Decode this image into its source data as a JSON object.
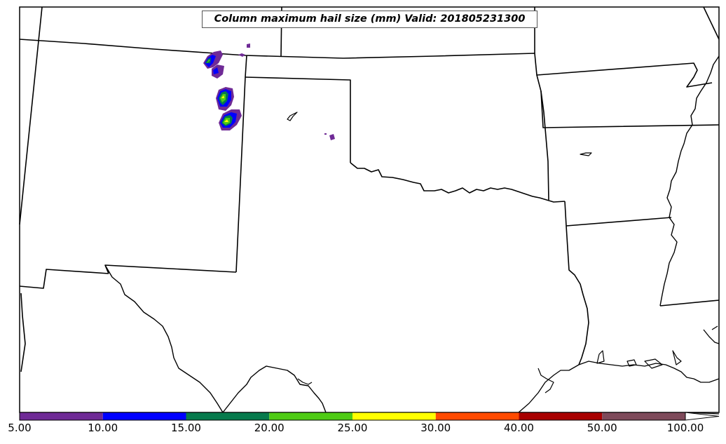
{
  "title": "Column maximum hail size (mm) Valid: 201805231300",
  "colorbar": {
    "levels": [
      {
        "label": "5.00",
        "color": "#6f2a96"
      },
      {
        "label": "10.00",
        "color": "#0000ff"
      },
      {
        "label": "15.00",
        "color": "#067a4c"
      },
      {
        "label": "20.00",
        "color": "#4ecb14"
      },
      {
        "label": "25.00",
        "color": "#ffff00"
      },
      {
        "label": "30.00",
        "color": "#ff4a00"
      },
      {
        "label": "40.00",
        "color": "#a80000"
      },
      {
        "label": "50.00",
        "color": "#7e4a5a"
      },
      {
        "label": "100.00",
        "color": "#ffffff"
      }
    ],
    "extend": "max"
  },
  "map": {
    "boundaries": "US state borders and coastline",
    "hail_colors": [
      "#6f2a96",
      "#0000ff",
      "#067a4c",
      "#4ecb14",
      "#ffff00"
    ]
  }
}
